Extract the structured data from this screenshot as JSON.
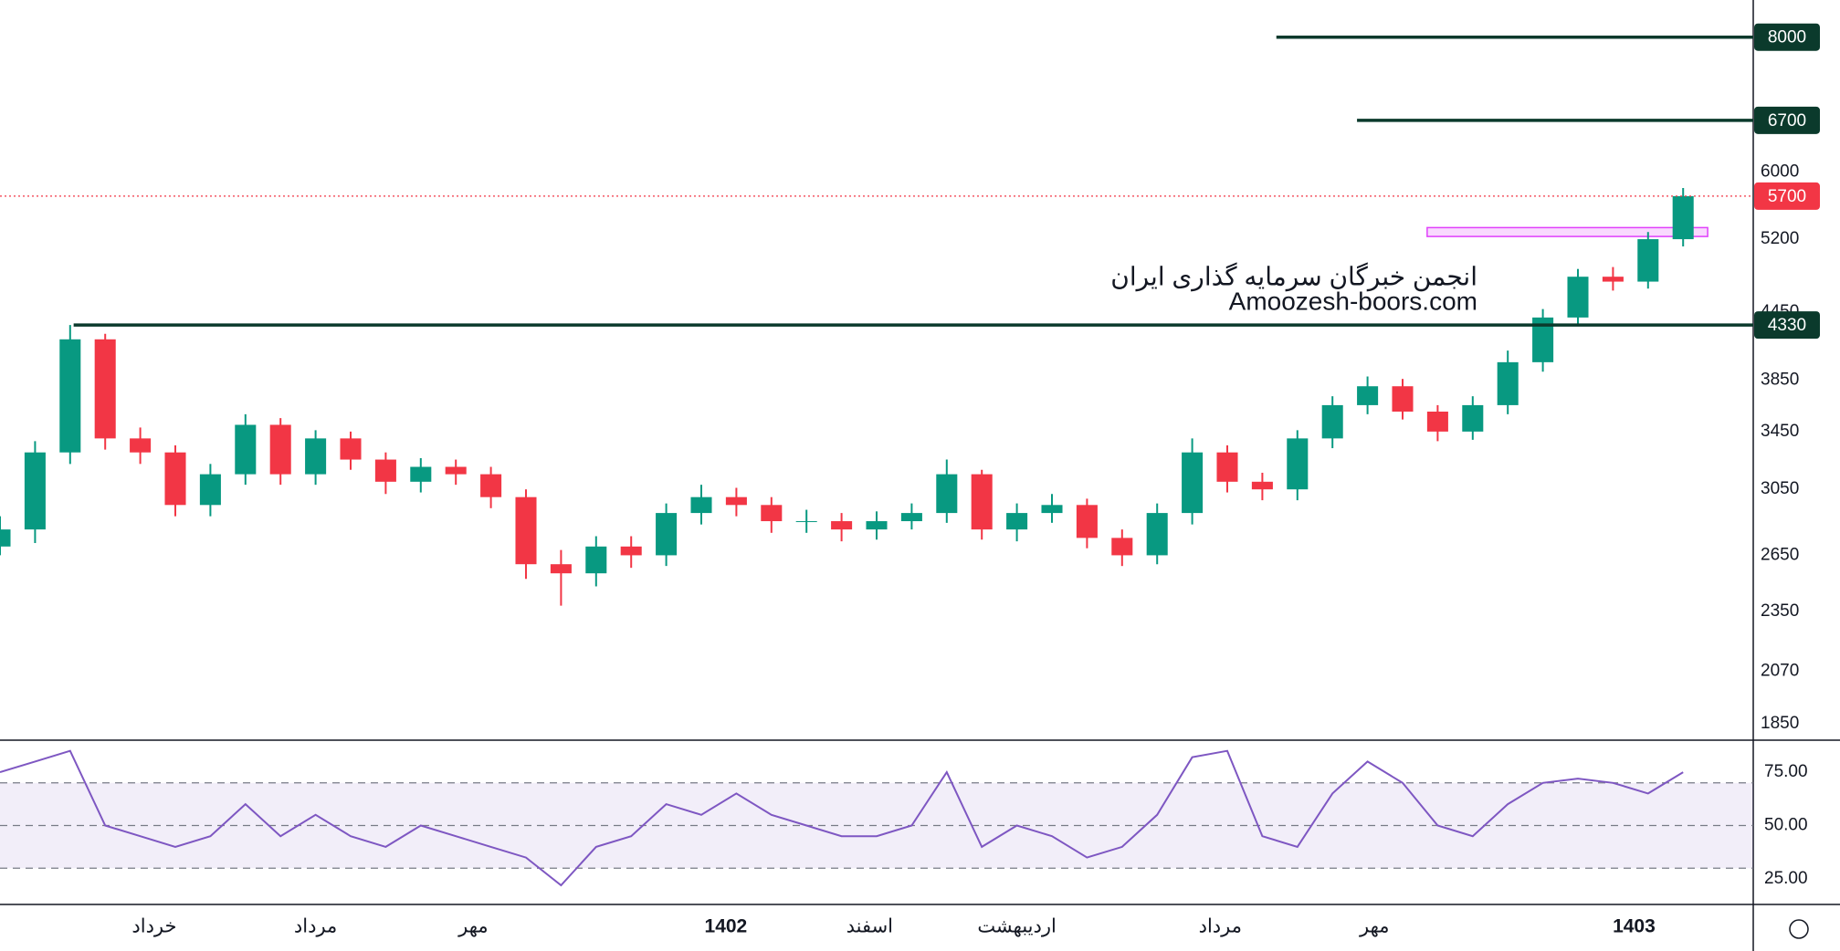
{
  "chart_data": [
    {
      "type": "candlestick",
      "open": [
        2700,
        2800,
        3300,
        4200,
        3400,
        3300,
        2950,
        3150,
        3500,
        3150,
        3400,
        3250,
        3100,
        3200,
        3150,
        3000,
        2600,
        2550,
        2700,
        2650,
        2900,
        3000,
        2950,
        2850,
        2850,
        2800,
        2850,
        2900,
        3150,
        2800,
        2900,
        2950,
        2750,
        2650,
        2900,
        3300,
        3100,
        3050,
        3400,
        3650,
        3800,
        3600,
        3450,
        3650,
        4000,
        4400,
        4800,
        4750,
        5200
      ],
      "high": [
        2880,
        3380,
        4330,
        4250,
        3480,
        3350,
        3220,
        3580,
        3550,
        3460,
        3450,
        3300,
        3260,
        3250,
        3200,
        3050,
        2680,
        2760,
        2760,
        2960,
        3080,
        3060,
        3000,
        2920,
        2900,
        2910,
        2960,
        3250,
        3180,
        2960,
        3020,
        2990,
        2800,
        2960,
        3400,
        3350,
        3160,
        3460,
        3720,
        3880,
        3860,
        3650,
        3720,
        4100,
        4480,
        4880,
        4900,
        5280,
        5800
      ],
      "low": [
        2650,
        2720,
        3220,
        3320,
        3220,
        2880,
        2880,
        3080,
        3080,
        3080,
        3180,
        3020,
        3030,
        3080,
        2930,
        2520,
        2380,
        2480,
        2580,
        2590,
        2830,
        2880,
        2780,
        2780,
        2730,
        2740,
        2800,
        2840,
        2740,
        2730,
        2840,
        2690,
        2590,
        2600,
        2830,
        3030,
        2980,
        2980,
        3330,
        3580,
        3540,
        3380,
        3390,
        3580,
        3920,
        4320,
        4660,
        4680,
        5120
      ],
      "close": [
        2800,
        3300,
        4200,
        3400,
        3300,
        2950,
        3150,
        3500,
        3150,
        3400,
        3250,
        3100,
        3200,
        3150,
        3000,
        2600,
        2550,
        2700,
        2650,
        2900,
        3000,
        2950,
        2850,
        2850,
        2800,
        2850,
        2900,
        3150,
        2800,
        2900,
        2950,
        2750,
        2650,
        2900,
        3300,
        3100,
        3050,
        3400,
        3650,
        3800,
        3600,
        3450,
        3650,
        4000,
        4400,
        4800,
        4750,
        5200,
        5700
      ],
      "up_color": "#089981",
      "down_color": "#f23645",
      "log_scale": true,
      "xlim": [
        0,
        50
      ],
      "ylim": [
        1790,
        8660
      ],
      "yticks": [
        1850,
        2070,
        2350,
        2650,
        3050,
        3450,
        3850,
        4450,
        5200,
        6000
      ],
      "xticks": [
        {
          "value": 4.4,
          "label": "خرداد"
        },
        {
          "value": 9.0,
          "label": "مرداد"
        },
        {
          "value": 13.5,
          "label": "مهر"
        },
        {
          "value": 20.7,
          "label": "1402"
        },
        {
          "value": 24.8,
          "label": "اسفند"
        },
        {
          "value": 29.0,
          "label": "اردیبهشت"
        },
        {
          "value": 34.8,
          "label": "مرداد"
        },
        {
          "value": 39.2,
          "label": "مهر"
        },
        {
          "value": 46.6,
          "label": "1403"
        }
      ],
      "levels": [
        {
          "value": 8000,
          "from": 36.4
        },
        {
          "value": 6700,
          "from": 38.7
        },
        {
          "value": 4330,
          "from": 2.1
        }
      ],
      "level_color": "#0b3a2c",
      "last_price": 5700,
      "zone": {
        "low": 5230,
        "high": 5330,
        "from": 40.7,
        "to": 48.7,
        "color": "#e040fb"
      },
      "watermark": [
        "انجمن خبرگان سرمایه گذاری ایران",
        "Amoozesh-boors.com"
      ]
    },
    {
      "type": "line",
      "values": [
        75,
        80,
        85,
        50,
        45,
        40,
        45,
        60,
        45,
        55,
        45,
        40,
        50,
        45,
        40,
        35,
        22,
        40,
        45,
        60,
        55,
        65,
        55,
        50,
        45,
        45,
        50,
        75,
        40,
        50,
        45,
        35,
        40,
        55,
        82,
        85,
        45,
        40,
        65,
        80,
        70,
        50,
        45,
        60,
        70,
        72,
        70,
        65,
        75
      ],
      "color": "#7e57c2",
      "ylim": [
        13,
        90
      ],
      "yticks": [
        {
          "value": 25,
          "label": "25.00"
        },
        {
          "value": 50,
          "label": "50.00"
        },
        {
          "value": 75,
          "label": "75.00"
        }
      ],
      "levels": [
        30,
        50,
        70
      ]
    }
  ]
}
